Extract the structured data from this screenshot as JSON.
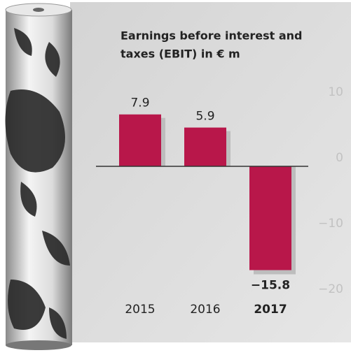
{
  "chart_data": {
    "type": "bar",
    "title": [
      "Earnings before interest and",
      "taxes (EBIT) in € m"
    ],
    "categories": [
      "2015",
      "2016",
      "2017"
    ],
    "values": [
      7.9,
      5.9,
      -15.8
    ],
    "value_labels": [
      "7.9",
      "5.9",
      "−15.8"
    ],
    "color": "#b8174a",
    "ylim": [
      -20,
      10
    ],
    "yticks": [
      10,
      0,
      {
        "value": -10,
        "label": "−10"
      },
      {
        "value": -20,
        "label": "−20"
      }
    ]
  }
}
